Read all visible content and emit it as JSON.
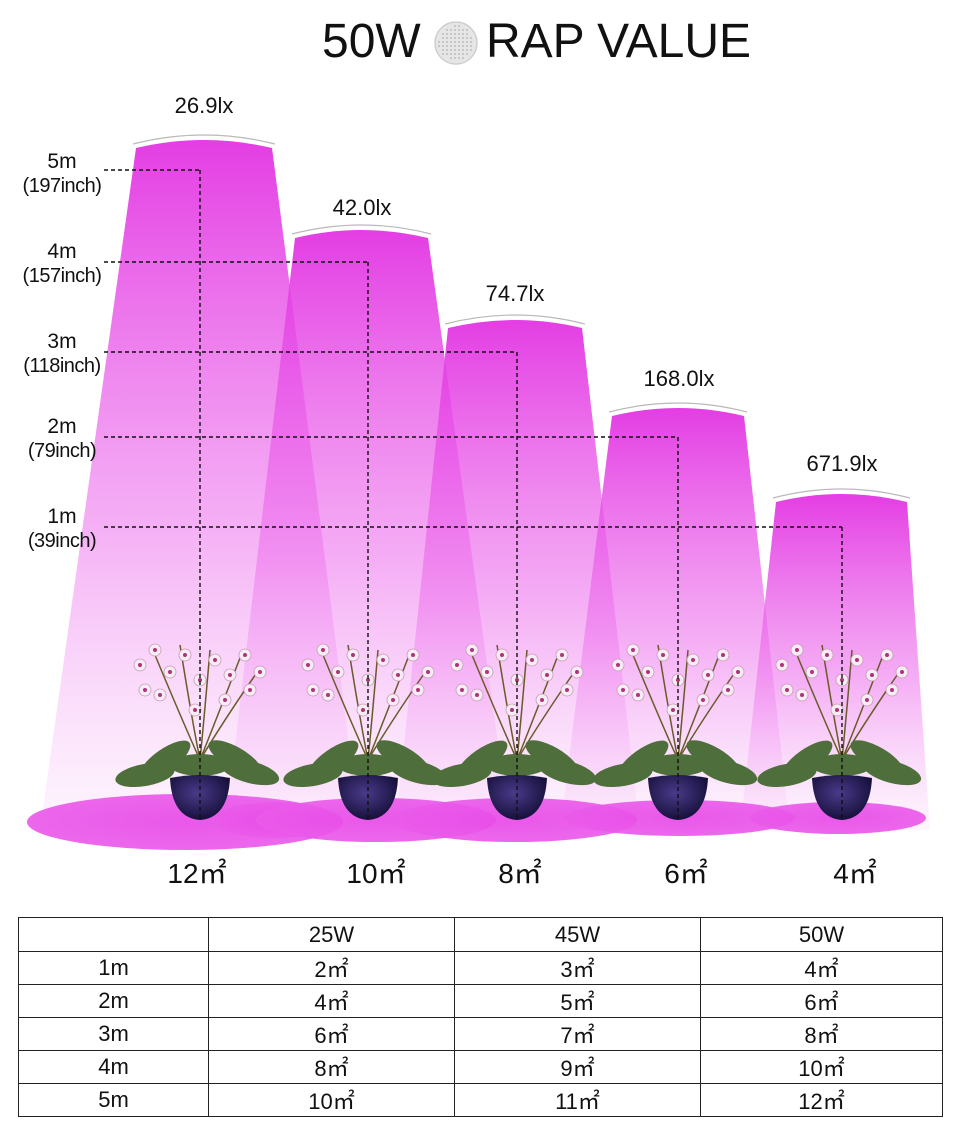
{
  "title": {
    "left": "50W",
    "right": "RAP VALUE",
    "icon": "led-panel-icon"
  },
  "lamps": [
    {
      "lux": "26.9lx",
      "area": "12㎡"
    },
    {
      "lux": "42.0lx",
      "area": "10㎡"
    },
    {
      "lux": "74.7lx",
      "area": "8㎡"
    },
    {
      "lux": "168.0lx",
      "area": "6㎡"
    },
    {
      "lux": "671.9lx",
      "area": "4㎡"
    }
  ],
  "heights": [
    {
      "m": "5m",
      "inch": "(197inch)"
    },
    {
      "m": "4m",
      "inch": "(157inch)"
    },
    {
      "m": "3m",
      "inch": "(118inch)"
    },
    {
      "m": "2m",
      "inch": "(79inch)"
    },
    {
      "m": "1m",
      "inch": "(39inch)"
    }
  ],
  "colors": {
    "light": "#e633e6",
    "light_pale": "#fbe0fb",
    "text": "#111111"
  },
  "table": {
    "headers": [
      "",
      "25W",
      "45W",
      "50W"
    ],
    "rows": [
      [
        "1m",
        "2㎡",
        "3㎡",
        "4㎡"
      ],
      [
        "2m",
        "4㎡",
        "5㎡",
        "6㎡"
      ],
      [
        "3m",
        "6㎡",
        "7㎡",
        "8㎡"
      ],
      [
        "4m",
        "8㎡",
        "9㎡",
        "10㎡"
      ],
      [
        "5m",
        "10㎡",
        "11㎡",
        "12㎡"
      ]
    ]
  }
}
